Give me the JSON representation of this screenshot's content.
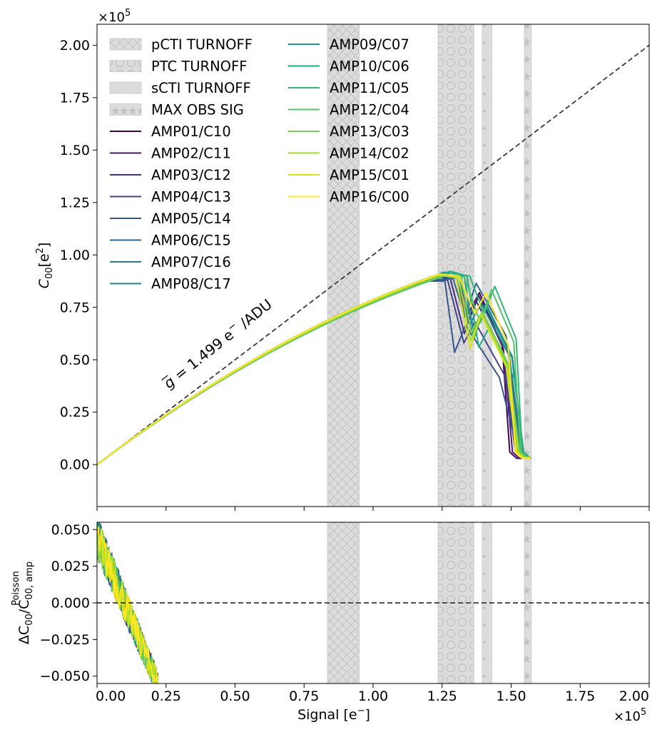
{
  "chart_data": [
    {
      "type": "line",
      "panel": "top",
      "ylabel_main": "C",
      "ylabel_sub": "00",
      "ylabel_unit": "[e",
      "ylabel_sup": "2",
      "ylabel_close": "]",
      "offset_text": "×10",
      "offset_exp": "5",
      "xlim": [
        0,
        200000
      ],
      "ylim": [
        -20000,
        210000
      ],
      "yticks": [
        0,
        25000,
        50000,
        75000,
        100000,
        125000,
        150000,
        175000,
        200000
      ],
      "ytick_labels": [
        "0.00",
        "0.25",
        "0.50",
        "0.75",
        "1.00",
        "1.25",
        "1.50",
        "1.75",
        "2.00"
      ],
      "xticks": [
        0,
        25000,
        50000,
        75000,
        100000,
        125000,
        150000,
        175000,
        200000
      ],
      "reference_line": {
        "style": "dashed",
        "color": "#3a3a3a",
        "x": [
          0,
          200000
        ],
        "y": [
          0,
          200000
        ]
      },
      "annotation": {
        "g": "g",
        "rest": " = 1.499 e",
        "sup": "−",
        "tail": " /ADU",
        "x": 26000,
        "y": 36000,
        "rotation_deg": -38.5
      },
      "bands": [
        {
          "name": "pCTI TURNOFF",
          "x0": 83500,
          "x1": 95000,
          "pattern": "crosshatch"
        },
        {
          "name": "PTC TURNOFF",
          "x0": 123500,
          "x1": 136500,
          "pattern": "circles"
        },
        {
          "name": "sCTI TURNOFF",
          "x0": 139500,
          "x1": 143000,
          "pattern": "dots"
        },
        {
          "name": "MAX OBS SIG",
          "x0": 154800,
          "x1": 157300,
          "pattern": "stars"
        }
      ],
      "legend": {
        "placement": "upper left",
        "columns": 2
      },
      "series": [
        {
          "name": "AMP01/C10",
          "color": "#440154",
          "peak_x": 131000,
          "peak_y": 90000,
          "fall_end_x": 152000
        },
        {
          "name": "AMP02/C11",
          "color": "#481a6c",
          "peak_x": 130000,
          "peak_y": 89500,
          "fall_end_x": 153000
        },
        {
          "name": "AMP03/C12",
          "color": "#472f7d",
          "peak_x": 128000,
          "peak_y": 88500,
          "fall_end_x": 154000
        },
        {
          "name": "AMP04/C13",
          "color": "#414487",
          "peak_x": 127000,
          "peak_y": 88000,
          "fall_end_x": 155000
        },
        {
          "name": "AMP05/C14",
          "color": "#39568c",
          "peak_x": 126000,
          "peak_y": 87500,
          "fall_end_x": 155000
        },
        {
          "name": "AMP06/C15",
          "color": "#31688e",
          "peak_x": 129000,
          "peak_y": 88500,
          "fall_end_x": 156000
        },
        {
          "name": "AMP07/C16",
          "color": "#2a788e",
          "peak_x": 130000,
          "peak_y": 89000,
          "fall_end_x": 156500
        },
        {
          "name": "AMP08/C17",
          "color": "#23888e",
          "peak_x": 131000,
          "peak_y": 89500,
          "fall_end_x": 157000
        },
        {
          "name": "AMP09/C07",
          "color": "#1f988b",
          "peak_x": 133000,
          "peak_y": 90000,
          "fall_end_x": 157000
        },
        {
          "name": "AMP10/C06",
          "color": "#22a884",
          "peak_x": 134000,
          "peak_y": 90000,
          "fall_end_x": 157000
        },
        {
          "name": "AMP11/C05",
          "color": "#35b779",
          "peak_x": 135000,
          "peak_y": 90000,
          "fall_end_x": 156500
        },
        {
          "name": "AMP12/C04",
          "color": "#54c568",
          "peak_x": 133000,
          "peak_y": 89500,
          "fall_end_x": 156000
        },
        {
          "name": "AMP13/C03",
          "color": "#7ad151",
          "peak_x": 132000,
          "peak_y": 89000,
          "fall_end_x": 155500
        },
        {
          "name": "AMP14/C02",
          "color": "#a5db36",
          "peak_x": 131000,
          "peak_y": 89000,
          "fall_end_x": 155000
        },
        {
          "name": "AMP15/C01",
          "color": "#d2e21b",
          "peak_x": 130000,
          "peak_y": 89500,
          "fall_end_x": 154500
        },
        {
          "name": "AMP16/C00",
          "color": "#fde725",
          "peak_x": 131000,
          "peak_y": 90000,
          "fall_end_x": 154000
        }
      ]
    },
    {
      "type": "line",
      "panel": "bottom",
      "xlabel_main": "Signal [e",
      "xlabel_sup": "−",
      "xlabel_close": "]",
      "ylabel_main": "ΔC",
      "ylabel_sub": "00",
      "ylabel_slash": "/C",
      "ylabel_sub2": "00, amp",
      "ylabel_sup2": "Poisson",
      "offset_text": "×10",
      "offset_exp": "5",
      "xlim": [
        0,
        200000
      ],
      "ylim": [
        -0.055,
        0.055
      ],
      "xticks": [
        0,
        25000,
        50000,
        75000,
        100000,
        125000,
        150000,
        175000,
        200000
      ],
      "xtick_labels": [
        "0.00",
        "0.25",
        "0.50",
        "0.75",
        "1.00",
        "1.25",
        "1.50",
        "1.75",
        "2.00"
      ],
      "yticks": [
        -0.05,
        -0.025,
        0,
        0.025,
        0.05
      ],
      "ytick_labels": [
        "−0.050",
        "−0.025",
        "0.000",
        "0.025",
        "0.050"
      ],
      "reference_line": {
        "style": "dashed",
        "color": "#3a3a3a",
        "y": 0
      },
      "residual_trend": {
        "x_start": 0,
        "y_start": 0.045,
        "x_end": 22000,
        "y_end": -0.055
      }
    }
  ]
}
